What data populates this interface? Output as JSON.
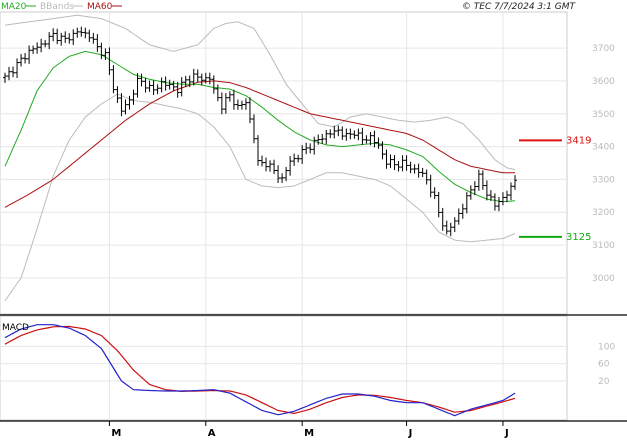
{
  "header": {
    "copyright": "© TEC 7/7/2024 3:1 GMT"
  },
  "legend": [
    {
      "label": "MA20",
      "color": "#22aa22"
    },
    {
      "label": "BBands",
      "color": "#bbbbbb"
    },
    {
      "label": "MA60",
      "color": "#aa1111"
    }
  ],
  "macd_label": "MACD",
  "colors": {
    "price": "#000000",
    "ma20": "#22aa22",
    "ma60": "#aa1111",
    "bbands": "#bbbbbb",
    "grid": "#e6e6e6",
    "resistance": "#dd1111",
    "support": "#11aa11",
    "macd": "#2222cc",
    "signal": "#cc1111",
    "axis_label": "#bbbbbb"
  },
  "chart_data": [
    {
      "type": "line",
      "name": "price",
      "y_ticks": [
        "3700",
        "3600",
        "3500",
        "3400",
        "3300",
        "3200",
        "3100",
        "3000"
      ],
      "y_tick_values": [
        3700,
        3600,
        3500,
        3400,
        3300,
        3200,
        3100,
        3000
      ],
      "ylim": [
        2890,
        3810
      ],
      "x_ticks": [
        {
          "label": "M",
          "index": 26
        },
        {
          "label": "A",
          "index": 50
        },
        {
          "label": "M",
          "index": 74
        },
        {
          "label": "J",
          "index": 100
        },
        {
          "label": "J",
          "index": 124
        }
      ],
      "n": 128,
      "price_knots": [
        [
          0,
          3610
        ],
        [
          3,
          3650
        ],
        [
          6,
          3690
        ],
        [
          9,
          3710
        ],
        [
          12,
          3740
        ],
        [
          15,
          3725
        ],
        [
          18,
          3750
        ],
        [
          21,
          3740
        ],
        [
          23,
          3700
        ],
        [
          25,
          3680
        ],
        [
          27,
          3580
        ],
        [
          29,
          3510
        ],
        [
          31,
          3540
        ],
        [
          33,
          3600
        ],
        [
          35,
          3590
        ],
        [
          37,
          3570
        ],
        [
          39,
          3595
        ],
        [
          41,
          3585
        ],
        [
          43,
          3575
        ],
        [
          45,
          3600
        ],
        [
          47,
          3615
        ],
        [
          49,
          3605
        ],
        [
          51,
          3610
        ],
        [
          52,
          3570
        ],
        [
          54,
          3525
        ],
        [
          56,
          3555
        ],
        [
          58,
          3520
        ],
        [
          60,
          3535
        ],
        [
          62,
          3430
        ],
        [
          63,
          3350
        ],
        [
          65,
          3350
        ],
        [
          67,
          3325
        ],
        [
          69,
          3300
        ],
        [
          71,
          3355
        ],
        [
          73,
          3370
        ],
        [
          75,
          3395
        ],
        [
          77,
          3410
        ],
        [
          79,
          3430
        ],
        [
          81,
          3440
        ],
        [
          83,
          3450
        ],
        [
          85,
          3430
        ],
        [
          87,
          3445
        ],
        [
          89,
          3420
        ],
        [
          91,
          3430
        ],
        [
          93,
          3400
        ],
        [
          95,
          3355
        ],
        [
          97,
          3345
        ],
        [
          99,
          3350
        ],
        [
          101,
          3335
        ],
        [
          103,
          3325
        ],
        [
          105,
          3300
        ],
        [
          107,
          3240
        ],
        [
          108,
          3200
        ],
        [
          110,
          3135
        ],
        [
          112,
          3175
        ],
        [
          114,
          3215
        ],
        [
          116,
          3270
        ],
        [
          118,
          3305
        ],
        [
          120,
          3260
        ],
        [
          122,
          3220
        ],
        [
          124,
          3245
        ],
        [
          126,
          3270
        ],
        [
          127,
          3300
        ]
      ],
      "ma20_knots": [
        [
          0,
          3340
        ],
        [
          4,
          3450
        ],
        [
          8,
          3570
        ],
        [
          12,
          3640
        ],
        [
          16,
          3675
        ],
        [
          20,
          3690
        ],
        [
          24,
          3680
        ],
        [
          28,
          3650
        ],
        [
          32,
          3620
        ],
        [
          36,
          3605
        ],
        [
          40,
          3595
        ],
        [
          44,
          3590
        ],
        [
          48,
          3590
        ],
        [
          52,
          3580
        ],
        [
          56,
          3575
        ],
        [
          60,
          3555
        ],
        [
          64,
          3520
        ],
        [
          68,
          3480
        ],
        [
          72,
          3445
        ],
        [
          76,
          3420
        ],
        [
          80,
          3405
        ],
        [
          84,
          3400
        ],
        [
          88,
          3405
        ],
        [
          92,
          3410
        ],
        [
          96,
          3405
        ],
        [
          100,
          3390
        ],
        [
          104,
          3370
        ],
        [
          108,
          3325
        ],
        [
          112,
          3285
        ],
        [
          116,
          3260
        ],
        [
          120,
          3240
        ],
        [
          124,
          3232
        ],
        [
          127,
          3235
        ]
      ],
      "ma60_knots": [
        [
          0,
          3215
        ],
        [
          6,
          3255
        ],
        [
          12,
          3300
        ],
        [
          18,
          3360
        ],
        [
          24,
          3420
        ],
        [
          30,
          3480
        ],
        [
          36,
          3530
        ],
        [
          42,
          3570
        ],
        [
          48,
          3596
        ],
        [
          52,
          3600
        ],
        [
          56,
          3595
        ],
        [
          60,
          3580
        ],
        [
          64,
          3560
        ],
        [
          68,
          3540
        ],
        [
          72,
          3520
        ],
        [
          76,
          3500
        ],
        [
          80,
          3490
        ],
        [
          84,
          3480
        ],
        [
          88,
          3470
        ],
        [
          92,
          3460
        ],
        [
          96,
          3450
        ],
        [
          100,
          3440
        ],
        [
          104,
          3420
        ],
        [
          108,
          3390
        ],
        [
          112,
          3360
        ],
        [
          116,
          3340
        ],
        [
          120,
          3330
        ],
        [
          124,
          3320
        ],
        [
          127,
          3320
        ]
      ],
      "bb_upper_knots": [
        [
          0,
          3770
        ],
        [
          6,
          3780
        ],
        [
          12,
          3790
        ],
        [
          18,
          3800
        ],
        [
          24,
          3790
        ],
        [
          30,
          3760
        ],
        [
          36,
          3710
        ],
        [
          42,
          3690
        ],
        [
          48,
          3710
        ],
        [
          52,
          3760
        ],
        [
          55,
          3775
        ],
        [
          58,
          3780
        ],
        [
          62,
          3760
        ],
        [
          66,
          3680
        ],
        [
          70,
          3590
        ],
        [
          74,
          3530
        ],
        [
          78,
          3470
        ],
        [
          82,
          3460
        ],
        [
          86,
          3490
        ],
        [
          90,
          3500
        ],
        [
          94,
          3490
        ],
        [
          98,
          3480
        ],
        [
          102,
          3475
        ],
        [
          106,
          3480
        ],
        [
          110,
          3490
        ],
        [
          114,
          3470
        ],
        [
          118,
          3420
        ],
        [
          122,
          3360
        ],
        [
          125,
          3335
        ],
        [
          127,
          3330
        ]
      ],
      "bb_lower_knots": [
        [
          0,
          2930
        ],
        [
          4,
          3000
        ],
        [
          8,
          3150
        ],
        [
          12,
          3310
        ],
        [
          16,
          3420
        ],
        [
          20,
          3490
        ],
        [
          24,
          3530
        ],
        [
          28,
          3560
        ],
        [
          32,
          3540
        ],
        [
          36,
          3535
        ],
        [
          40,
          3525
        ],
        [
          44,
          3515
        ],
        [
          48,
          3500
        ],
        [
          52,
          3460
        ],
        [
          56,
          3400
        ],
        [
          60,
          3300
        ],
        [
          64,
          3280
        ],
        [
          68,
          3275
        ],
        [
          72,
          3280
        ],
        [
          76,
          3300
        ],
        [
          80,
          3320
        ],
        [
          84,
          3320
        ],
        [
          88,
          3310
        ],
        [
          92,
          3300
        ],
        [
          96,
          3280
        ],
        [
          100,
          3240
        ],
        [
          104,
          3200
        ],
        [
          108,
          3140
        ],
        [
          112,
          3115
        ],
        [
          116,
          3110
        ],
        [
          120,
          3115
        ],
        [
          124,
          3120
        ],
        [
          127,
          3135
        ]
      ],
      "levels": [
        {
          "label": "3419",
          "value": 3419,
          "kind": "resistance"
        },
        {
          "label": "3125",
          "value": 3125,
          "kind": "support"
        }
      ]
    },
    {
      "type": "line",
      "name": "MACD",
      "y_ticks": [
        "100",
        "60",
        "20"
      ],
      "y_tick_values": [
        100,
        60,
        20
      ],
      "ylim": [
        -70,
        170
      ],
      "macd_knots": [
        [
          0,
          120
        ],
        [
          4,
          140
        ],
        [
          8,
          150
        ],
        [
          12,
          150
        ],
        [
          16,
          142
        ],
        [
          20,
          125
        ],
        [
          24,
          95
        ],
        [
          27,
          50
        ],
        [
          29,
          20
        ],
        [
          32,
          0
        ],
        [
          36,
          -2
        ],
        [
          40,
          -3
        ],
        [
          44,
          -3
        ],
        [
          48,
          -2
        ],
        [
          52,
          0
        ],
        [
          56,
          -8
        ],
        [
          60,
          -28
        ],
        [
          64,
          -48
        ],
        [
          68,
          -58
        ],
        [
          72,
          -50
        ],
        [
          76,
          -35
        ],
        [
          80,
          -20
        ],
        [
          84,
          -10
        ],
        [
          88,
          -10
        ],
        [
          92,
          -15
        ],
        [
          96,
          -25
        ],
        [
          100,
          -30
        ],
        [
          104,
          -30
        ],
        [
          108,
          -45
        ],
        [
          112,
          -60
        ],
        [
          116,
          -45
        ],
        [
          120,
          -35
        ],
        [
          124,
          -25
        ],
        [
          127,
          -8
        ]
      ],
      "signal_knots": [
        [
          0,
          105
        ],
        [
          4,
          125
        ],
        [
          8,
          138
        ],
        [
          12,
          145
        ],
        [
          16,
          146
        ],
        [
          20,
          140
        ],
        [
          24,
          125
        ],
        [
          28,
          90
        ],
        [
          32,
          45
        ],
        [
          36,
          12
        ],
        [
          40,
          0
        ],
        [
          44,
          -4
        ],
        [
          48,
          -3
        ],
        [
          52,
          -2
        ],
        [
          56,
          -3
        ],
        [
          60,
          -12
        ],
        [
          64,
          -30
        ],
        [
          68,
          -48
        ],
        [
          72,
          -55
        ],
        [
          76,
          -45
        ],
        [
          80,
          -30
        ],
        [
          84,
          -18
        ],
        [
          88,
          -12
        ],
        [
          92,
          -13
        ],
        [
          96,
          -18
        ],
        [
          100,
          -25
        ],
        [
          104,
          -30
        ],
        [
          108,
          -40
        ],
        [
          112,
          -52
        ],
        [
          116,
          -48
        ],
        [
          120,
          -38
        ],
        [
          124,
          -28
        ],
        [
          127,
          -20
        ]
      ]
    }
  ]
}
